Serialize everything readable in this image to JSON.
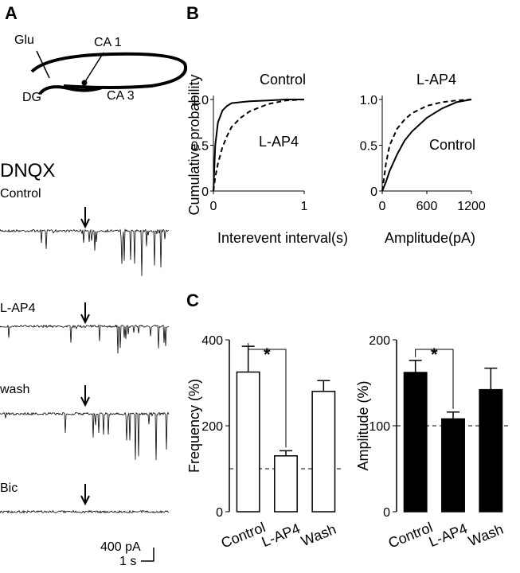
{
  "panel_labels": [
    "A",
    "B",
    "C"
  ],
  "diagram": {
    "labels": [
      "Glu",
      "CA 1",
      "DG",
      "CA 3"
    ]
  },
  "traces": {
    "drug": "DNQX",
    "conditions": [
      "Control",
      "L-AP4",
      "wash",
      "Bic"
    ],
    "scale_y": "400 pA",
    "scale_x": "1 s"
  },
  "chart_data": [
    {
      "type": "line",
      "ylabel": "Cumulative probability",
      "xlabel": "Interevent interval(s)",
      "x": [
        0,
        0.02,
        0.05,
        0.1,
        0.15,
        0.2,
        0.3,
        0.4,
        0.6,
        0.8,
        1.0
      ],
      "xlim": [
        0,
        1
      ],
      "xticks": [
        0,
        1
      ],
      "ylim": [
        0,
        1
      ],
      "yticks": [
        0,
        0.5,
        {
          "value": 1,
          "label": "1.0"
        }
      ],
      "series": [
        {
          "name": "Control",
          "color": "#000000",
          "dashed": false,
          "values": [
            0,
            0.5,
            0.75,
            0.88,
            0.93,
            0.96,
            0.97,
            0.98,
            0.99,
            1,
            1
          ]
        },
        {
          "name": "L-AP4",
          "color": "#000000",
          "dashed": true,
          "values": [
            0,
            0.15,
            0.3,
            0.48,
            0.6,
            0.7,
            0.8,
            0.87,
            0.95,
            0.99,
            1
          ]
        }
      ]
    },
    {
      "type": "line",
      "xlabel": "Amplitude(pA)",
      "x": [
        0,
        50,
        100,
        200,
        300,
        400,
        600,
        800,
        1000,
        1200
      ],
      "xlim": [
        0,
        1200
      ],
      "xticks": [
        0,
        600,
        1200
      ],
      "ylim": [
        0,
        1
      ],
      "yticks": [
        0,
        0.5,
        {
          "value": 1,
          "label": "1.0"
        }
      ],
      "series": [
        {
          "name": "Control",
          "color": "#000000",
          "dashed": false,
          "values": [
            0,
            0.1,
            0.22,
            0.4,
            0.55,
            0.65,
            0.8,
            0.9,
            0.97,
            1
          ]
        },
        {
          "name": "L-AP4",
          "color": "#000000",
          "dashed": true,
          "values": [
            0,
            0.3,
            0.5,
            0.68,
            0.78,
            0.85,
            0.93,
            0.97,
            0.99,
            1
          ]
        }
      ]
    },
    {
      "type": "bar",
      "ylabel": "Frequency (%)",
      "categories": [
        "Control",
        "L-AP4",
        "Wash"
      ],
      "values": [
        325,
        130,
        280
      ],
      "errors": [
        60,
        12,
        25
      ],
      "color": "#ffffff",
      "ylim": [
        0,
        400
      ],
      "yticks": [
        0,
        200,
        400
      ],
      "reference_line": 100,
      "significance": {
        "label": "*",
        "between": [
          0,
          1
        ]
      }
    },
    {
      "type": "bar",
      "ylabel": "Amplitude  (%)",
      "categories": [
        "Control",
        "L-AP4",
        "Wash"
      ],
      "values": [
        162,
        108,
        142
      ],
      "errors": [
        14,
        8,
        25
      ],
      "color": "#000000",
      "ylim": [
        0,
        200
      ],
      "yticks": [
        0,
        100,
        200
      ],
      "reference_line": 100,
      "significance": {
        "label": "*",
        "between": [
          0,
          1
        ]
      }
    }
  ]
}
